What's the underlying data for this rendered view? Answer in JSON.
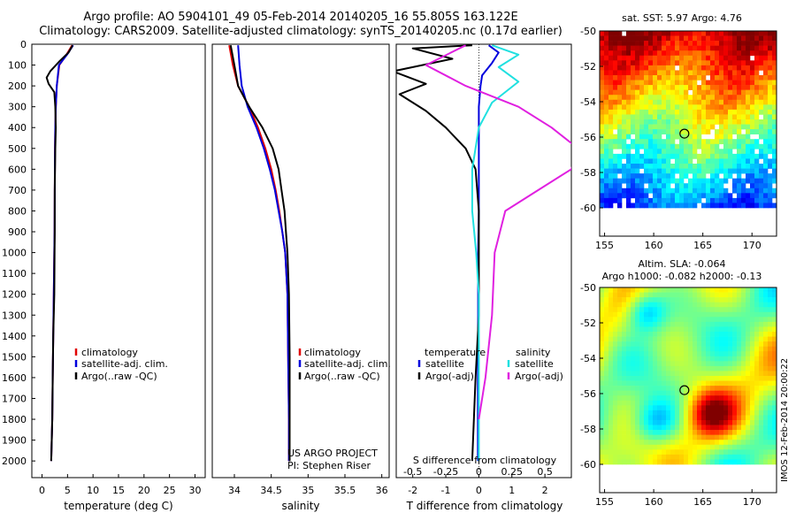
{
  "header": {
    "line1": "Argo profile: AO 5904101_49 05-Feb-2014 20140205_16 55.805S 163.122E",
    "line2": "Climatology: CARS2009. Satellite-adjusted climatology: synTS_20140205.nc (0.17d earlier)"
  },
  "colors": {
    "climatology": "#e00000",
    "satellite": "#0000dd",
    "argo": "#000000",
    "sal_satellite": "#20e0e0",
    "sal_argo": "#e020e0"
  },
  "depth_ticks": [
    0,
    100,
    200,
    300,
    400,
    500,
    600,
    700,
    800,
    900,
    1000,
    1100,
    1200,
    1300,
    1400,
    1500,
    1600,
    1700,
    1800,
    1900,
    2000
  ],
  "chart_data": [
    {
      "type": "line",
      "name": "temperature-profile",
      "xlabel": "temperature (deg C)",
      "xlim": [
        -2,
        32
      ],
      "ylim": [
        0,
        2080
      ],
      "y_inverted": true,
      "x_ticks": [
        0,
        5,
        10,
        15,
        20,
        25,
        30
      ],
      "legend": [
        "climatology",
        "satellite-adj. clim.",
        "Argo(..raw -QC)"
      ],
      "series": [
        {
          "name": "climatology",
          "color": "#e00000",
          "x": [
            5.9,
            4.8,
            3.4,
            2.9,
            2.7,
            2.6,
            2.55,
            2.5,
            2.45,
            2.4,
            2.3,
            2.2,
            2.1,
            2.0,
            1.9,
            1.8
          ],
          "y": [
            5,
            50,
            100,
            200,
            300,
            400,
            500,
            700,
            900,
            1000,
            1200,
            1400,
            1600,
            1800,
            1900,
            2000
          ]
        },
        {
          "name": "satellite-adj. clim.",
          "color": "#0000dd",
          "x": [
            6.1,
            4.9,
            3.3,
            2.9,
            2.7,
            2.6,
            2.55,
            2.5,
            2.45,
            2.4,
            2.3,
            2.2,
            2.1,
            2.0,
            1.9,
            1.8
          ],
          "y": [
            5,
            50,
            100,
            200,
            300,
            400,
            500,
            700,
            900,
            1000,
            1200,
            1400,
            1600,
            1800,
            1900,
            2000
          ]
        },
        {
          "name": "Argo(..raw -QC)",
          "color": "#000000",
          "x": [
            6.0,
            5.2,
            3.5,
            1.6,
            0.9,
            1.3,
            2.4,
            2.6,
            2.7,
            2.6,
            2.5,
            2.5,
            2.45,
            2.4,
            2.2,
            2.1,
            2.0,
            1.9,
            1.8
          ],
          "y": [
            5,
            40,
            80,
            130,
            160,
            190,
            230,
            300,
            400,
            500,
            700,
            900,
            1000,
            1200,
            1400,
            1600,
            1800,
            1900,
            2000
          ]
        }
      ]
    },
    {
      "type": "line",
      "name": "salinity-profile",
      "xlabel": "salinity",
      "xlim": [
        33.7,
        36.1
      ],
      "ylim": [
        0,
        2080
      ],
      "y_inverted": true,
      "x_ticks": [
        34,
        34.5,
        35,
        35.5,
        36
      ],
      "legend": [
        "climatology",
        "satellite-adj. clim.",
        "Argo(..raw -QC)"
      ],
      "annotation": [
        "US ARGO PROJECT",
        "PI: Stephen Riser"
      ],
      "series": [
        {
          "name": "climatology",
          "color": "#e00000",
          "x": [
            33.93,
            33.98,
            34.05,
            34.2,
            34.32,
            34.42,
            34.5,
            34.56,
            34.61,
            34.65,
            34.69,
            34.72,
            34.73,
            34.74,
            34.74
          ],
          "y": [
            5,
            100,
            200,
            300,
            400,
            500,
            600,
            700,
            800,
            900,
            1000,
            1200,
            1500,
            1800,
            2000
          ]
        },
        {
          "name": "satellite-adj. clim.",
          "color": "#0000dd",
          "x": [
            34.05,
            34.07,
            34.1,
            34.18,
            34.3,
            34.4,
            34.48,
            34.55,
            34.6,
            34.65,
            34.69,
            34.72,
            34.73,
            34.74,
            34.74
          ],
          "y": [
            5,
            100,
            200,
            300,
            400,
            500,
            600,
            700,
            800,
            900,
            1000,
            1200,
            1500,
            1800,
            2000
          ]
        },
        {
          "name": "Argo(..raw -QC)",
          "color": "#000000",
          "x": [
            33.95,
            34.0,
            34.05,
            34.2,
            34.38,
            34.52,
            34.6,
            34.64,
            34.68,
            34.7,
            34.72,
            34.74,
            34.75,
            34.75,
            34.75
          ],
          "y": [
            5,
            100,
            200,
            300,
            400,
            500,
            600,
            700,
            800,
            900,
            1000,
            1200,
            1500,
            1800,
            2000
          ]
        }
      ]
    },
    {
      "type": "line",
      "name": "difference-profile",
      "xlabel_top": "S difference from climatology",
      "xlabel": "T difference from climatology",
      "xlim": [
        -2.5,
        2.8
      ],
      "ylim": [
        0,
        2080
      ],
      "y_inverted": true,
      "x_ticks_T": [
        -2,
        -1,
        0,
        1,
        2
      ],
      "x_ticks_S": [
        -0.5,
        -0.25,
        0,
        0.25,
        0.5
      ],
      "legend_T": {
        "header": "temperature",
        "items": [
          "satellite",
          "Argo(-adj)"
        ]
      },
      "legend_S": {
        "header": "salinity",
        "items": [
          "satellite",
          "Argo(-adj)"
        ]
      },
      "series": [
        {
          "name": "T satellite",
          "color": "#0000dd",
          "x": [
            0.3,
            0.6,
            0.4,
            0.1,
            0.05,
            0.0,
            0.0,
            0.0,
            0.0,
            -0.02,
            -0.02,
            -0.03,
            -0.03,
            -0.03
          ],
          "y": [
            5,
            40,
            90,
            150,
            200,
            300,
            400,
            600,
            800,
            1000,
            1300,
            1600,
            1800,
            2000
          ]
        },
        {
          "name": "T Argo(-adj)",
          "color": "#000000",
          "x": [
            -0.2,
            -2.0,
            -0.8,
            -2.6,
            -1.6,
            -2.4,
            -1.6,
            -1.0,
            -0.4,
            -0.1,
            0.0,
            0.0,
            0.0,
            -0.1,
            -0.2
          ],
          "y": [
            5,
            20,
            70,
            130,
            190,
            240,
            320,
            400,
            500,
            600,
            800,
            1000,
            1300,
            1600,
            2000
          ]
        },
        {
          "name": "S satellite",
          "color": "#20e0e0",
          "x": [
            0.1,
            0.3,
            0.15,
            0.3,
            0.1,
            0.0,
            -0.05,
            -0.05,
            -0.02,
            0.0,
            0.0,
            0.0,
            0.0
          ],
          "y": [
            5,
            50,
            110,
            180,
            280,
            400,
            600,
            800,
            1000,
            1200,
            1500,
            1800,
            2000
          ]
        },
        {
          "name": "S Argo(-adj)",
          "color": "#e020e0",
          "x": [
            -0.1,
            -0.4,
            -0.1,
            0.3,
            0.55,
            0.75,
            0.7,
            0.45,
            0.2,
            0.12,
            0.1,
            0.05,
            0.0
          ],
          "y": [
            5,
            100,
            200,
            300,
            400,
            500,
            600,
            700,
            800,
            1000,
            1300,
            1600,
            1800
          ]
        }
      ]
    },
    {
      "type": "heatmap",
      "name": "sst-map",
      "title": "sat. SST: 5.97 Argo: 4.76",
      "xlim": [
        154.5,
        172.5
      ],
      "ylim": [
        -60,
        -50
      ],
      "x_ticks": [
        155,
        160,
        165,
        170
      ],
      "y_ticks": [
        -50,
        -52,
        -54,
        -56,
        -58,
        -60
      ],
      "marker": {
        "lon": 163.122,
        "lat": -55.805
      }
    },
    {
      "type": "heatmap",
      "name": "sla-map",
      "title": "Altim. SLA: -0.064",
      "subtitle": "Argo h1000: -0.082 h2000: -0.13",
      "xlim": [
        154.5,
        172.5
      ],
      "ylim": [
        -60,
        -50
      ],
      "x_ticks": [
        155,
        160,
        165,
        170
      ],
      "y_ticks": [
        -50,
        -52,
        -54,
        -56,
        -58,
        -60
      ],
      "marker": {
        "lon": 163.122,
        "lat": -55.805
      }
    }
  ],
  "credit": "IMOS 12-Feb-2014 20:00:22"
}
